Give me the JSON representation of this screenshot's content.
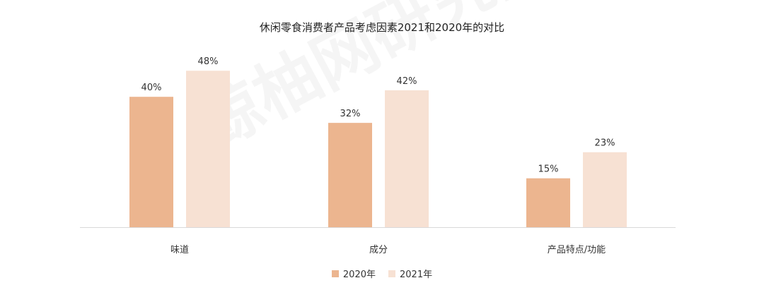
{
  "watermark": "鲸柚网研究院",
  "chart_data": {
    "type": "bar",
    "title": "休闲零食消费者产品考虑因素2021和2020年的对比",
    "xlabel": "",
    "ylabel": "",
    "categories": [
      "味道",
      "成分",
      "产品特点/功能"
    ],
    "series": [
      {
        "name": "2020年",
        "values": [
          40,
          32,
          15
        ],
        "labels": [
          "40%",
          "32%",
          "15%"
        ],
        "color": "#ecb58f"
      },
      {
        "name": "2021年",
        "values": [
          48,
          42,
          23
        ],
        "labels": [
          "48%",
          "42%",
          "23%"
        ],
        "color": "#f7e1d3"
      }
    ],
    "ylim": [
      0,
      60
    ],
    "grid": false,
    "legend_position": "bottom"
  }
}
